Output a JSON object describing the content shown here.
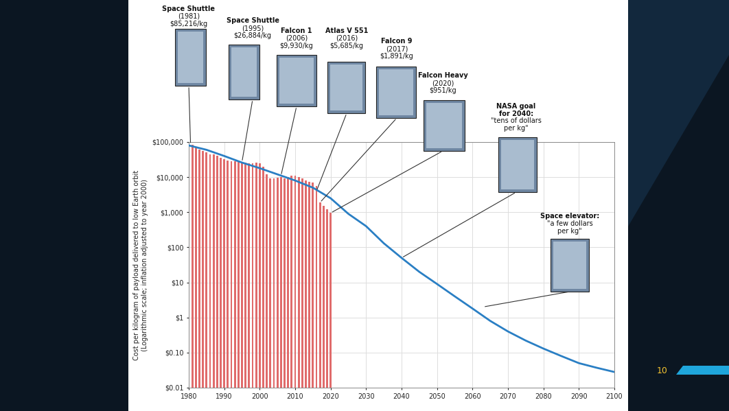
{
  "chart_data": {
    "type": "bar",
    "y_label": "Cost per kilogram of payload delivered to low Earth orbit\n(Logarithmic scale; inflation adjusted to year 2000)",
    "log": "y",
    "grid": true,
    "xlim": [
      1980,
      2100
    ],
    "xticks": [
      1980,
      1990,
      2000,
      2010,
      2020,
      2030,
      2040,
      2050,
      2060,
      2070,
      2080,
      2090,
      2100
    ],
    "ylim": [
      0.01,
      100000
    ],
    "yticks": [
      {
        "value": 0.01,
        "label": "$0.01"
      },
      {
        "value": 0.1,
        "label": "$0.10"
      },
      {
        "value": 1,
        "label": "$1"
      },
      {
        "value": 10,
        "label": "$10"
      },
      {
        "value": 100,
        "label": "$100"
      },
      {
        "value": 1000,
        "label": "$1,000"
      },
      {
        "value": 10000,
        "label": "$10,000"
      },
      {
        "value": 100000,
        "label": "$100,000"
      }
    ],
    "series": [
      {
        "type": "bar",
        "color": "#e06b6b",
        "x": [
          1980,
          1981,
          1982,
          1983,
          1984,
          1985,
          1986,
          1987,
          1988,
          1989,
          1990,
          1991,
          1992,
          1993,
          1994,
          1995,
          1996,
          1997,
          1998,
          1999,
          2000,
          2001,
          2002,
          2003,
          2004,
          2005,
          2006,
          2007,
          2008,
          2009,
          2010,
          2011,
          2012,
          2013,
          2014,
          2015,
          2016,
          2017,
          2018,
          2019,
          2020
        ],
        "values": [
          80000,
          85216,
          70000,
          60000,
          55000,
          50000,
          45000,
          45000,
          40000,
          35000,
          32000,
          30000,
          28000,
          28000,
          27000,
          26884,
          26000,
          25000,
          25000,
          26000,
          25000,
          20000,
          12000,
          9000,
          9000,
          9500,
          9930,
          9000,
          10000,
          11000,
          11000,
          10000,
          9000,
          8000,
          7500,
          7000,
          5685,
          1891,
          1500,
          1200,
          951
        ]
      },
      {
        "type": "line",
        "color": "#2a7fc4",
        "x": [
          1980,
          1985,
          1990,
          1995,
          2000,
          2005,
          2010,
          2015,
          2020,
          2025,
          2030,
          2035,
          2040,
          2045,
          2050,
          2055,
          2060,
          2065,
          2070,
          2075,
          2080,
          2085,
          2090,
          2095,
          2100
        ],
        "values": [
          80000,
          60000,
          40000,
          26000,
          18000,
          12000,
          8000,
          5000,
          2500,
          900,
          400,
          130,
          50,
          20,
          9,
          4,
          1.8,
          0.8,
          0.4,
          0.22,
          0.13,
          0.08,
          0.05,
          0.037,
          0.028
        ]
      }
    ],
    "annotations": [
      {
        "title": "Space Shuttle",
        "text": "(1981)\n$85,216/kg",
        "x": 1980.5,
        "y": 85216
      },
      {
        "title": "Space Shuttle",
        "text": "(1995)\n$26,884/kg",
        "x": 1995,
        "y": 26884
      },
      {
        "title": "Falcon 1",
        "text": "(2006)\n$9,930/kg",
        "x": 2006,
        "y": 11000
      },
      {
        "title": "Atlas V 551",
        "text": "(2016)\n$5,685/kg",
        "x": 2016,
        "y": 4000
      },
      {
        "title": "Falcon 9",
        "text": "(2017)\n$1,891/kg",
        "x": 2017,
        "y": 1891
      },
      {
        "title": "Falcon Heavy",
        "text": "(2020)\n$951/kg",
        "x": 2020,
        "y": 951
      },
      {
        "title": "NASA goal\nfor 2040:",
        "text": "\"tens of dollars\nper kg\"",
        "x": 2040,
        "y": 50
      },
      {
        "title": "Space elevator:",
        "text": "\"a few dollars\nper kg\"",
        "x": 2063,
        "y": 2
      }
    ],
    "page_number": "10"
  }
}
